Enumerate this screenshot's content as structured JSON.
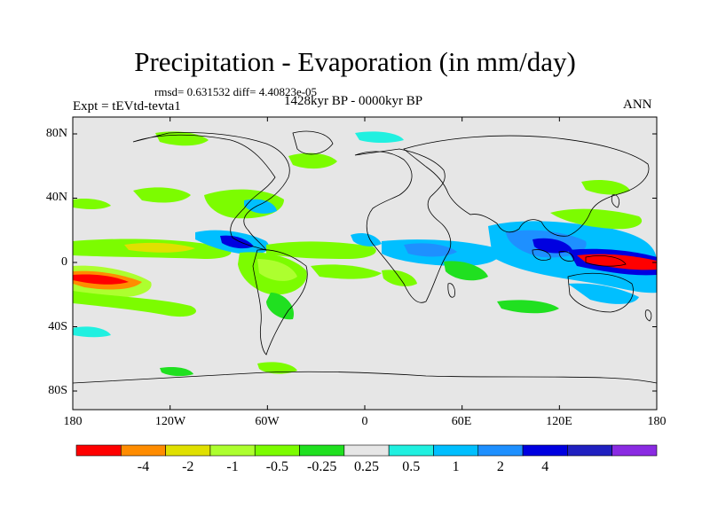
{
  "title": "Precipitation - Evaporation (in mm/day)",
  "stats": "rmsd= 0.631532 diff= 4.40823e-05",
  "expt": "Expt = tEVtd-tevta1",
  "period": "1428kyr BP - 0000kyr BP",
  "season": "ANN",
  "lat_labels": [
    "80N",
    "40N",
    "0",
    "40S",
    "80S"
  ],
  "lon_labels": [
    "180",
    "120W",
    "60W",
    "0",
    "60E",
    "120E",
    "180"
  ],
  "colorbar": {
    "colors": [
      "#ff0000",
      "#ff8c00",
      "#e0e000",
      "#adff2f",
      "#7cfc00",
      "#20e020",
      "#e6e6e6",
      "#20f0e0",
      "#00bfff",
      "#1e90ff",
      "#0000e0",
      "#2020c0",
      "#8a2be2"
    ],
    "labels": [
      "-4",
      "-2",
      "-1",
      "-0.5",
      "-0.25",
      "0.25",
      "0.5",
      "1",
      "2",
      "4"
    ]
  },
  "field_colors": {
    "background": "#e6e6e6",
    "coast": "#000000"
  }
}
